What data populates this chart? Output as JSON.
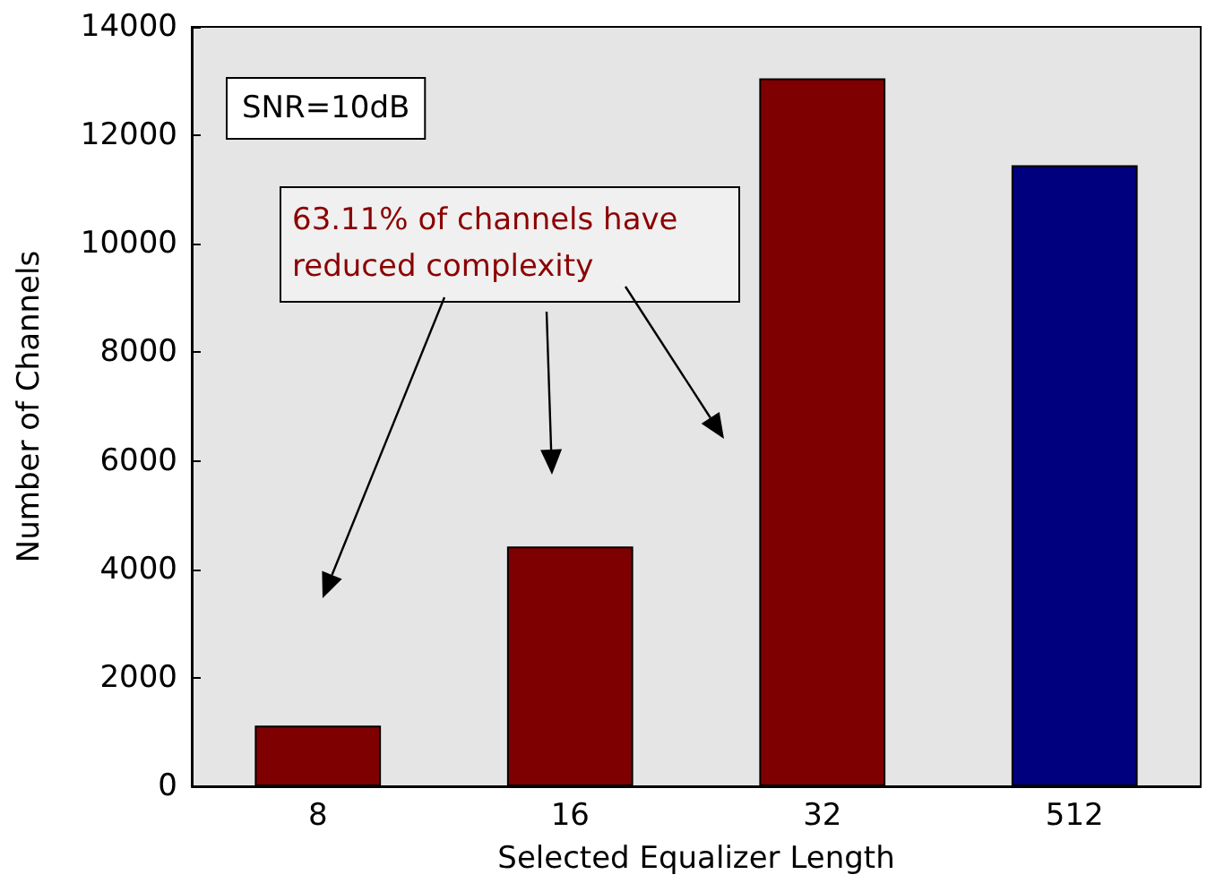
{
  "chart_data": {
    "type": "bar",
    "xlabel": "Selected Equalizer Length",
    "ylabel": "Number of Channels",
    "categories": [
      "8",
      "16",
      "32",
      "512"
    ],
    "values": [
      1120,
      4420,
      13050,
      11450
    ],
    "colors": [
      "#7f0000",
      "#7f0000",
      "#7f0000",
      "#00007f"
    ],
    "ylim": [
      0,
      14000
    ],
    "yticks": [
      0,
      2000,
      4000,
      6000,
      8000,
      10000,
      12000,
      14000
    ],
    "grid": false,
    "annotations": [
      "SNR=10dB",
      "63.11% of channels have reduced complexity"
    ]
  }
}
